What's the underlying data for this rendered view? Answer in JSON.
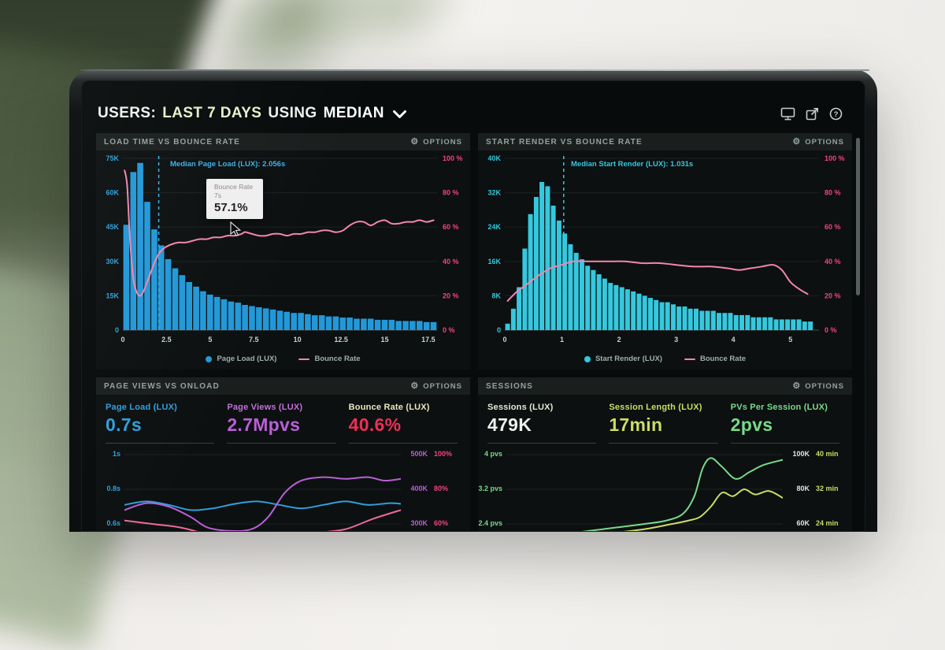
{
  "header": {
    "users": "USERS:",
    "range": "LAST 7 DAYS",
    "using": "USING",
    "metric": "MEDIAN"
  },
  "ui": {
    "options_label": "OPTIONS",
    "icons": [
      "monitor-icon",
      "external-link-icon",
      "help-icon",
      "gear-icon",
      "chevron-down-icon"
    ],
    "accent_colors": {
      "blue": "#2398d8",
      "cyan": "#35c8de",
      "pink": "#f585ae",
      "red_pink": "#f0437f",
      "magenta": "#b95fd6",
      "green": "#79d98b",
      "yellow_green": "#ccdd66"
    }
  },
  "chart_data": [
    {
      "type": "bar",
      "subtype": "histogram_with_line",
      "title": "LOAD TIME VS BOUNCE RATE",
      "x_ticks": [
        "0",
        "2.5",
        "5",
        "7.5",
        "10",
        "12.5",
        "15",
        "17.5"
      ],
      "x_tick_values": [
        0,
        2.5,
        5,
        7.5,
        10,
        12.5,
        15,
        17.5
      ],
      "x_max": 18,
      "bin_width": 0.4,
      "y_left": {
        "ticks": [
          "75K",
          "60K",
          "45K",
          "30K",
          "15K",
          "0"
        ],
        "max": 75,
        "color": "#2f9fdc"
      },
      "y_right": {
        "ticks": [
          "100 %",
          "80 %",
          "60 %",
          "40 %",
          "20 %",
          "0 %"
        ],
        "max": 100,
        "color": "#f0437f"
      },
      "bars_k": [
        46,
        69,
        73,
        56,
        44,
        37,
        31,
        27,
        24,
        21,
        19,
        17,
        15.5,
        14.5,
        13.5,
        12.5,
        12,
        11,
        10.5,
        10,
        9.5,
        9,
        8.5,
        8,
        7.5,
        7.5,
        7,
        6.5,
        6.5,
        6,
        6,
        5.5,
        5.5,
        5,
        5,
        5,
        4.5,
        4.5,
        4.5,
        4,
        4,
        4,
        4,
        3.5,
        3.5
      ],
      "bar_color": "#2398d8",
      "line": {
        "color": "#f585ae",
        "points": [
          [
            0.1,
            93
          ],
          [
            0.25,
            84
          ],
          [
            0.4,
            54
          ],
          [
            0.6,
            30
          ],
          [
            0.8,
            22
          ],
          [
            1,
            20
          ],
          [
            1.2,
            23
          ],
          [
            1.5,
            31
          ],
          [
            1.8,
            39
          ],
          [
            2.1,
            45
          ],
          [
            2.4,
            48
          ],
          [
            2.8,
            50
          ],
          [
            3.2,
            51
          ],
          [
            3.6,
            51
          ],
          [
            4,
            52
          ],
          [
            4.4,
            53
          ],
          [
            4.8,
            53
          ],
          [
            5.2,
            54
          ],
          [
            5.6,
            54
          ],
          [
            6,
            55
          ],
          [
            6.4,
            55
          ],
          [
            6.8,
            56
          ],
          [
            7,
            57.1
          ],
          [
            7.4,
            56
          ],
          [
            7.8,
            55
          ],
          [
            8.2,
            55
          ],
          [
            8.6,
            56
          ],
          [
            9,
            56
          ],
          [
            9.4,
            55
          ],
          [
            9.8,
            56
          ],
          [
            10.2,
            56
          ],
          [
            10.6,
            57
          ],
          [
            11,
            57
          ],
          [
            11.4,
            58
          ],
          [
            11.8,
            58
          ],
          [
            12.2,
            57
          ],
          [
            12.6,
            58
          ],
          [
            13,
            61
          ],
          [
            13.4,
            63
          ],
          [
            13.8,
            63
          ],
          [
            14.2,
            61
          ],
          [
            14.6,
            63
          ],
          [
            15,
            64
          ],
          [
            15.4,
            62
          ],
          [
            15.8,
            62
          ],
          [
            16.2,
            63
          ],
          [
            16.6,
            63
          ],
          [
            17,
            64
          ],
          [
            17.4,
            63
          ],
          [
            17.8,
            64
          ]
        ]
      },
      "median": {
        "value": 2.056,
        "label": "Median Page Load (LUX): 2.056s",
        "color": "#3db1e8"
      },
      "tooltip": {
        "series": "Bounce Rate",
        "x": "7s",
        "value": "57.1%"
      },
      "legend": [
        {
          "label": "Page Load (LUX)",
          "color": "#2398d8",
          "marker": "dot"
        },
        {
          "label": "Bounce Rate",
          "color": "#f585ae",
          "marker": "line"
        }
      ]
    },
    {
      "type": "bar",
      "subtype": "histogram_with_line",
      "title": "START RENDER VS BOUNCE RATE",
      "x_ticks": [
        "0",
        "1",
        "2",
        "3",
        "4",
        "5"
      ],
      "x_tick_values": [
        0,
        1,
        2,
        3,
        4,
        5
      ],
      "x_max": 5.5,
      "bin_width": 0.1,
      "y_left": {
        "ticks": [
          "40K",
          "32K",
          "24K",
          "16K",
          "8K",
          "0"
        ],
        "max": 40,
        "color": "#35c8de"
      },
      "y_right": {
        "ticks": [
          "100 %",
          "80 %",
          "60 %",
          "40 %",
          "20 %",
          "0 %"
        ],
        "max": 100,
        "color": "#f0437f"
      },
      "bars_k": [
        1.5,
        5,
        10,
        19,
        27,
        31,
        34.5,
        33.5,
        29,
        25.5,
        22.5,
        20,
        18,
        16.5,
        15,
        14,
        13,
        12,
        11,
        10.5,
        10,
        9.5,
        9,
        8.5,
        8,
        7.5,
        7,
        6.5,
        6.5,
        6,
        5.5,
        5.5,
        5,
        5,
        4.5,
        4.5,
        4.5,
        4,
        4,
        4,
        3.5,
        3.5,
        3.5,
        3,
        3,
        3,
        3,
        2.5,
        2.5,
        2.5,
        2.5,
        2.5,
        2,
        2
      ],
      "bar_color": "#35c8de",
      "line": {
        "color": "#f585ae",
        "points": [
          [
            0.05,
            17
          ],
          [
            0.2,
            22
          ],
          [
            0.4,
            27
          ],
          [
            0.6,
            32
          ],
          [
            0.8,
            36
          ],
          [
            1,
            38
          ],
          [
            1.2,
            40
          ],
          [
            1.5,
            40
          ],
          [
            1.8,
            40
          ],
          [
            2.1,
            40
          ],
          [
            2.4,
            39
          ],
          [
            2.7,
            39
          ],
          [
            3,
            38
          ],
          [
            3.3,
            37
          ],
          [
            3.6,
            37
          ],
          [
            3.9,
            36
          ],
          [
            4.1,
            35
          ],
          [
            4.3,
            36
          ],
          [
            4.5,
            37
          ],
          [
            4.7,
            38
          ],
          [
            4.85,
            35
          ],
          [
            5,
            28
          ],
          [
            5.15,
            24
          ],
          [
            5.3,
            21
          ]
        ]
      },
      "median": {
        "value": 1.031,
        "label": "Median Start Render (LUX): 1.031s",
        "color": "#35c8de"
      },
      "legend": [
        {
          "label": "Start Render (LUX)",
          "color": "#35c8de",
          "marker": "dot"
        },
        {
          "label": "Bounce Rate",
          "color": "#f585ae",
          "marker": "line"
        }
      ]
    },
    {
      "type": "line",
      "title": "PAGE VIEWS VS ONLOAD",
      "metrics": [
        {
          "label": "Page Load (LUX)",
          "value": "0.7s",
          "label_color": "#2f9fdc",
          "value_color": "#2f9fdc"
        },
        {
          "label": "Page Views (LUX)",
          "value": "2.7Mpvs",
          "label_color": "#c36fdd",
          "value_color": "#b95fd6"
        },
        {
          "label": "Bounce Rate (LUX)",
          "value": "40.6%",
          "label_color": "#eae6bc",
          "value_color": "#ef2e57"
        }
      ],
      "rows_left": {
        "labels": [
          "1s",
          "0.8s",
          "0.6s"
        ],
        "color": "#2f9fdc"
      },
      "rows_right": {
        "labels": [
          [
            "500K",
            "100%"
          ],
          [
            "400K",
            "80%"
          ],
          [
            "300K",
            "60%"
          ]
        ],
        "k_color": "#b95fd6",
        "unit_color": "#f0437f"
      },
      "series": [
        {
          "name": "Page Load (LUX)",
          "color": "#2f9fdc",
          "points": [
            [
              0,
              1.45
            ],
            [
              0.08,
              1.35
            ],
            [
              0.16,
              1.45
            ],
            [
              0.24,
              1.6
            ],
            [
              0.32,
              1.55
            ],
            [
              0.4,
              1.42
            ],
            [
              0.48,
              1.35
            ],
            [
              0.56,
              1.45
            ],
            [
              0.64,
              1.55
            ],
            [
              0.72,
              1.45
            ],
            [
              0.8,
              1.35
            ],
            [
              0.88,
              1.45
            ],
            [
              0.96,
              1.4
            ],
            [
              1,
              1.42
            ]
          ]
        },
        {
          "name": "Page Views (LUX)",
          "color": "#b95fd6",
          "points": [
            [
              0,
              1.6
            ],
            [
              0.08,
              1.4
            ],
            [
              0.16,
              1.5
            ],
            [
              0.24,
              1.8
            ],
            [
              0.3,
              2.1
            ],
            [
              0.38,
              2.2
            ],
            [
              0.46,
              2.15
            ],
            [
              0.52,
              1.8
            ],
            [
              0.58,
              1.1
            ],
            [
              0.64,
              0.75
            ],
            [
              0.72,
              0.65
            ],
            [
              0.8,
              0.7
            ],
            [
              0.88,
              0.65
            ],
            [
              0.94,
              0.75
            ],
            [
              1,
              0.7
            ]
          ]
        },
        {
          "name": "Bounce Rate (LUX)",
          "color": "#f0679e",
          "points": [
            [
              0,
              1.9
            ],
            [
              0.1,
              2.0
            ],
            [
              0.2,
              2.1
            ],
            [
              0.3,
              2.3
            ],
            [
              0.4,
              2.5
            ],
            [
              0.5,
              2.45
            ],
            [
              0.6,
              2.35
            ],
            [
              0.7,
              2.25
            ],
            [
              0.8,
              2.15
            ],
            [
              0.9,
              1.85
            ],
            [
              1,
              1.6
            ]
          ]
        }
      ]
    },
    {
      "type": "line",
      "title": "SESSIONS",
      "metrics": [
        {
          "label": "Sessions (LUX)",
          "value": "479K",
          "label_color": "#e3e9d4",
          "value_color": "#eef2ee"
        },
        {
          "label": "Session Length (LUX)",
          "value": "17min",
          "label_color": "#ccdd66",
          "value_color": "#ccdd66"
        },
        {
          "label": "PVs Per Session (LUX)",
          "value": "2pvs",
          "label_color": "#79d98b",
          "value_color": "#79d98b"
        }
      ],
      "rows_left": {
        "labels": [
          "4 pvs",
          "3.2 pvs",
          "2.4 pvs"
        ],
        "color": "#79d98b"
      },
      "rows_right": {
        "labels": [
          [
            "100K",
            "40 min"
          ],
          [
            "80K",
            "32 min"
          ],
          [
            "60K",
            "24 min"
          ]
        ],
        "k_color": "#dfe5e5",
        "unit_color": "#ccdd66"
      },
      "series": [
        {
          "name": "PVs Per Session (LUX)",
          "color": "#79d98b",
          "points": [
            [
              0,
              2.5
            ],
            [
              0.1,
              2.4
            ],
            [
              0.2,
              2.3
            ],
            [
              0.3,
              2.2
            ],
            [
              0.4,
              2.1
            ],
            [
              0.5,
              2.0
            ],
            [
              0.58,
              1.9
            ],
            [
              0.64,
              1.7
            ],
            [
              0.68,
              1.2
            ],
            [
              0.71,
              0.4
            ],
            [
              0.74,
              0.1
            ],
            [
              0.78,
              0.35
            ],
            [
              0.83,
              0.7
            ],
            [
              0.88,
              0.5
            ],
            [
              0.93,
              0.3
            ],
            [
              1,
              0.15
            ]
          ]
        },
        {
          "name": "Session Length (LUX)",
          "color": "#ccdd66",
          "points": [
            [
              0,
              2.6
            ],
            [
              0.1,
              2.5
            ],
            [
              0.2,
              2.45
            ],
            [
              0.3,
              2.35
            ],
            [
              0.4,
              2.25
            ],
            [
              0.5,
              2.15
            ],
            [
              0.6,
              2.0
            ],
            [
              0.66,
              1.9
            ],
            [
              0.7,
              1.8
            ],
            [
              0.74,
              1.5
            ],
            [
              0.78,
              1.1
            ],
            [
              0.82,
              1.2
            ],
            [
              0.86,
              1.0
            ],
            [
              0.9,
              1.15
            ],
            [
              0.95,
              1.05
            ],
            [
              1,
              1.25
            ]
          ]
        }
      ]
    }
  ]
}
